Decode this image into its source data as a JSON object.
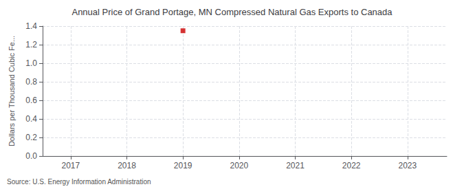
{
  "chart_data": {
    "type": "scatter",
    "title": "Annual Price of Grand Portage, MN Compressed Natural Gas Exports to Canada",
    "ylabel": "Dollars per Thousand Cubic Fe...",
    "annotation": "Source: U.S. Energy Information Administration",
    "x": [
      2019
    ],
    "values": [
      1.35
    ],
    "color": "#cc0000",
    "marker": "square",
    "xlim": [
      2016.5,
      2023.7
    ],
    "ylim": [
      0.0,
      1.4
    ],
    "xticks": [
      2017,
      2018,
      2019,
      2020,
      2021,
      2022,
      2023
    ],
    "yticks": [
      {
        "value": 0,
        "label": "0.0"
      },
      0.2,
      0.4,
      0.6,
      0.8,
      {
        "value": 1.0,
        "label": "1.0"
      },
      1.2,
      1.4
    ],
    "grid": true
  }
}
